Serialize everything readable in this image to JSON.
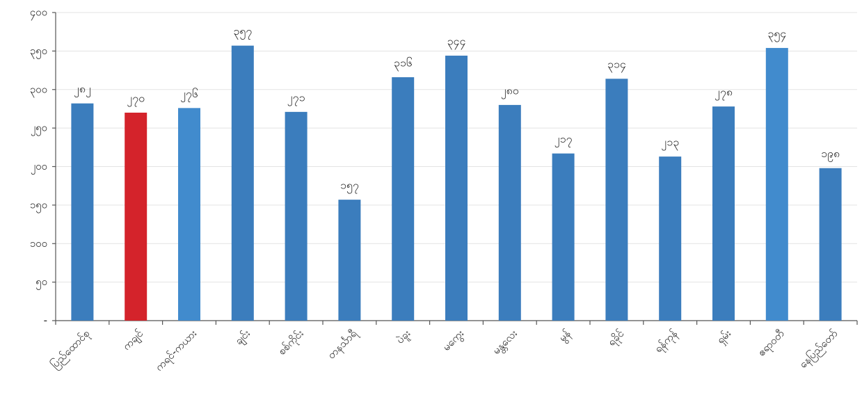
{
  "chart_data": {
    "type": "bar",
    "categories": [
      "ပြည်ထောင်စု",
      "ကချင်",
      "ကရင်-ကယား",
      "ချင်း",
      "စစ်ကိုင်း",
      "တနင်္သာရီ",
      "ပဲခူး",
      "မကွေး",
      "မန္တလေး",
      "မွန်",
      "ရခိုင်",
      "ရန်ကုန်",
      "ရှမ်း",
      "ဧရာဝတီ",
      "နေပြည်တော်"
    ],
    "values": [
      282,
      270,
      276,
      357,
      271,
      157,
      316,
      344,
      280,
      217,
      314,
      213,
      278,
      354,
      198
    ],
    "value_labels": [
      "၂၈၂",
      "၂၇၀",
      "၂၇၆",
      "၃၅၇",
      "၂၇၁",
      "၁၅၇",
      "၃၁၆",
      "၃၄၄",
      "၂၈၀",
      "၂၁၇",
      "၃၁၄",
      "၂၁၃",
      "၂၇၈",
      "၃၅၄",
      "၁၉၈"
    ],
    "colors": [
      "#3b7dbd",
      "#d4232b",
      "#418bcd",
      "#3b7dbd",
      "#3b7dbd",
      "#3b7dbd",
      "#3b7dbd",
      "#3b7dbd",
      "#3b7dbd",
      "#3b7dbd",
      "#3b7dbd",
      "#3b7dbd",
      "#3b7dbd",
      "#418bcd",
      "#3b7dbd"
    ],
    "ylim": [
      0,
      400
    ],
    "yticks": [
      {
        "value": 0,
        "label": "-"
      },
      {
        "value": 50,
        "label": "၅၀"
      },
      {
        "value": 100,
        "label": "၁၀၀"
      },
      {
        "value": 150,
        "label": "၁၅၀"
      },
      {
        "value": 200,
        "label": "၂၀၀"
      },
      {
        "value": 250,
        "label": "၂၅၀"
      },
      {
        "value": 300,
        "label": "၃၀၀"
      },
      {
        "value": 350,
        "label": "၃၅၀"
      },
      {
        "value": 400,
        "label": "၄၀၀"
      }
    ],
    "grid": true
  }
}
